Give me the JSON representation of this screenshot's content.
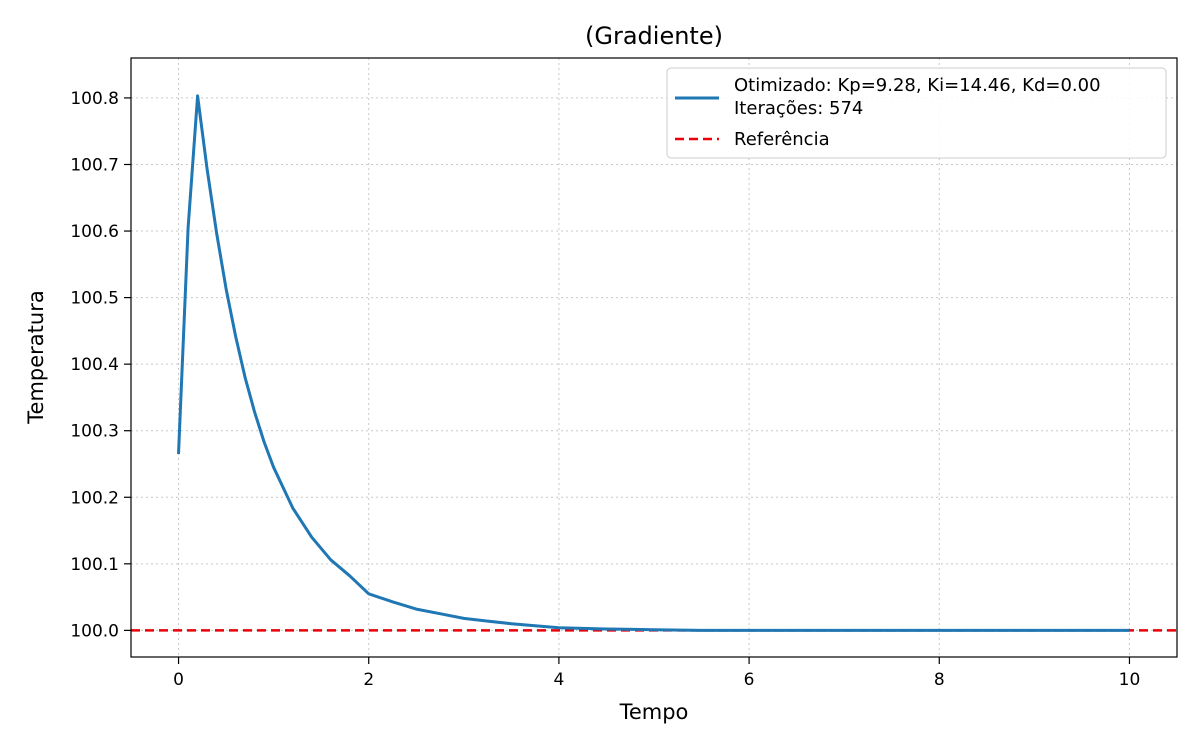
{
  "chart_data": {
    "type": "line",
    "title": "(Gradiente)",
    "xlabel": "Tempo",
    "ylabel": "Temperatura",
    "xlim": [
      -0.5,
      10.5
    ],
    "ylim": [
      99.96,
      100.86
    ],
    "xticks": [
      0,
      2,
      4,
      6,
      8,
      10
    ],
    "xtick_labels": [
      "0",
      "2",
      "4",
      "6",
      "8",
      "10"
    ],
    "yticks": [
      100.0,
      100.1,
      100.2,
      100.3,
      100.4,
      100.5,
      100.6,
      100.7,
      100.8
    ],
    "ytick_labels": [
      "100.0",
      "100.1",
      "100.2",
      "100.3",
      "100.4",
      "100.5",
      "100.6",
      "100.7",
      "100.8"
    ],
    "grid": true,
    "legend_position": "top-right",
    "series": [
      {
        "name": "Otimizado: Kp=9.28, Ki=14.46, Kd=0.00",
        "legend_extra": "Iterações: 574",
        "color": "#1f77b4",
        "style": "solid",
        "x": [
          0,
          0.1,
          0.2,
          0.3,
          0.4,
          0.5,
          0.6,
          0.7,
          0.8,
          0.9,
          1.0,
          1.2,
          1.4,
          1.6,
          1.8,
          2.0,
          2.25,
          2.5,
          2.75,
          3.0,
          3.25,
          3.5,
          3.75,
          4.0,
          4.5,
          5.0,
          5.5,
          6.0,
          7.0,
          8.0,
          9.0,
          10.0
        ],
        "y": [
          100.265,
          100.605,
          100.803,
          100.693,
          100.597,
          100.513,
          100.442,
          100.38,
          100.328,
          100.283,
          100.245,
          100.184,
          100.14,
          100.106,
          100.082,
          100.055,
          100.043,
          100.032,
          100.025,
          100.018,
          100.014,
          100.01,
          100.007,
          100.004,
          100.002,
          100.001,
          100.0,
          100.0,
          100.0,
          100.0,
          100.0,
          100.0
        ]
      },
      {
        "name": "Referência",
        "color": "#e8000b",
        "style": "dashed",
        "reference_y": 100.0
      }
    ]
  }
}
